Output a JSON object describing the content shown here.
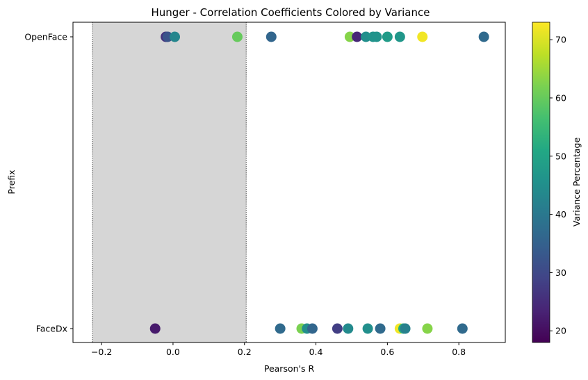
{
  "chart_data": {
    "type": "scatter",
    "title": "Hunger - Correlation Coefficients Colored by Variance",
    "xlabel": "Pearson's R",
    "ylabel": "Prefix",
    "categories": [
      "FaceDx",
      "OpenFace"
    ],
    "xlim": [
      -0.28,
      0.93
    ],
    "xticks": [
      -0.2,
      0.0,
      0.2,
      0.4,
      0.6,
      0.8
    ],
    "xtick_labels": [
      "−0.2",
      "0.0",
      "0.2",
      "0.4",
      "0.6",
      "0.8"
    ],
    "shaded_region": [
      -0.225,
      0.205
    ],
    "grid": false,
    "colorbar": {
      "label": "Variance Percentage",
      "colormap": "viridis",
      "range": [
        18,
        73
      ],
      "ticks": [
        20,
        30,
        40,
        50,
        60,
        70
      ],
      "tick_labels": [
        "20",
        "30",
        "40",
        "50",
        "60",
        "70"
      ]
    },
    "points": [
      {
        "category": "OpenFace",
        "x": -0.02,
        "variance": 26
      },
      {
        "category": "OpenFace",
        "x": -0.015,
        "variance": 32
      },
      {
        "category": "OpenFace",
        "x": 0.005,
        "variance": 43
      },
      {
        "category": "OpenFace",
        "x": 0.18,
        "variance": 60
      },
      {
        "category": "OpenFace",
        "x": 0.275,
        "variance": 36
      },
      {
        "category": "OpenFace",
        "x": 0.495,
        "variance": 63
      },
      {
        "category": "OpenFace",
        "x": 0.515,
        "variance": 24
      },
      {
        "category": "OpenFace",
        "x": 0.54,
        "variance": 45
      },
      {
        "category": "OpenFace",
        "x": 0.56,
        "variance": 46
      },
      {
        "category": "OpenFace",
        "x": 0.57,
        "variance": 46
      },
      {
        "category": "OpenFace",
        "x": 0.6,
        "variance": 48
      },
      {
        "category": "OpenFace",
        "x": 0.635,
        "variance": 47
      },
      {
        "category": "OpenFace",
        "x": 0.698,
        "variance": 72
      },
      {
        "category": "OpenFace",
        "x": 0.87,
        "variance": 37
      },
      {
        "category": "FaceDx",
        "x": -0.05,
        "variance": 22
      },
      {
        "category": "FaceDx",
        "x": 0.3,
        "variance": 37
      },
      {
        "category": "FaceDx",
        "x": 0.36,
        "variance": 62
      },
      {
        "category": "FaceDx",
        "x": 0.375,
        "variance": 45
      },
      {
        "category": "FaceDx",
        "x": 0.39,
        "variance": 36
      },
      {
        "category": "FaceDx",
        "x": 0.46,
        "variance": 28
      },
      {
        "category": "FaceDx",
        "x": 0.49,
        "variance": 44
      },
      {
        "category": "FaceDx",
        "x": 0.545,
        "variance": 45
      },
      {
        "category": "FaceDx",
        "x": 0.58,
        "variance": 37
      },
      {
        "category": "FaceDx",
        "x": 0.635,
        "variance": 72
      },
      {
        "category": "FaceDx",
        "x": 0.645,
        "variance": 52
      },
      {
        "category": "FaceDx",
        "x": 0.65,
        "variance": 42
      },
      {
        "category": "FaceDx",
        "x": 0.712,
        "variance": 63
      },
      {
        "category": "FaceDx",
        "x": 0.81,
        "variance": 37
      }
    ],
    "colors": {
      "shade": "#d6d6d6",
      "shade_line": "#808080"
    }
  }
}
